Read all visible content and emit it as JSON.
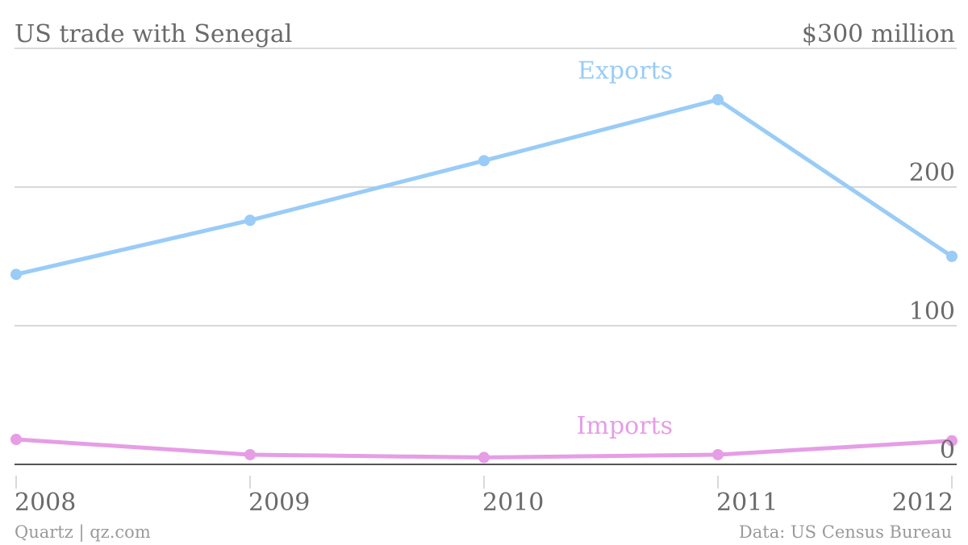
{
  "chart_data": {
    "type": "line",
    "title": "US trade with Senegal",
    "x": [
      "2008",
      "2009",
      "2010",
      "2011",
      "2012"
    ],
    "ylim": [
      0,
      300
    ],
    "ytick_labels": [
      "0",
      "100",
      "200",
      "$300 million"
    ],
    "grid": true,
    "series": [
      {
        "name": "Exports",
        "values": [
          137,
          176,
          219,
          263,
          150
        ],
        "color": "#99ccf7"
      },
      {
        "name": "Imports",
        "values": [
          18,
          7,
          5,
          7,
          17
        ],
        "color": "#e69de6"
      }
    ]
  },
  "footer": {
    "source_left": "Quartz | qz.com",
    "source_right": "Data: US Census Bureau"
  },
  "colors": {
    "exports": "#99ccf7",
    "imports": "#e69de6",
    "grid": "#d9d9d9",
    "axis": "#555555",
    "text": "#6a6a6a"
  }
}
